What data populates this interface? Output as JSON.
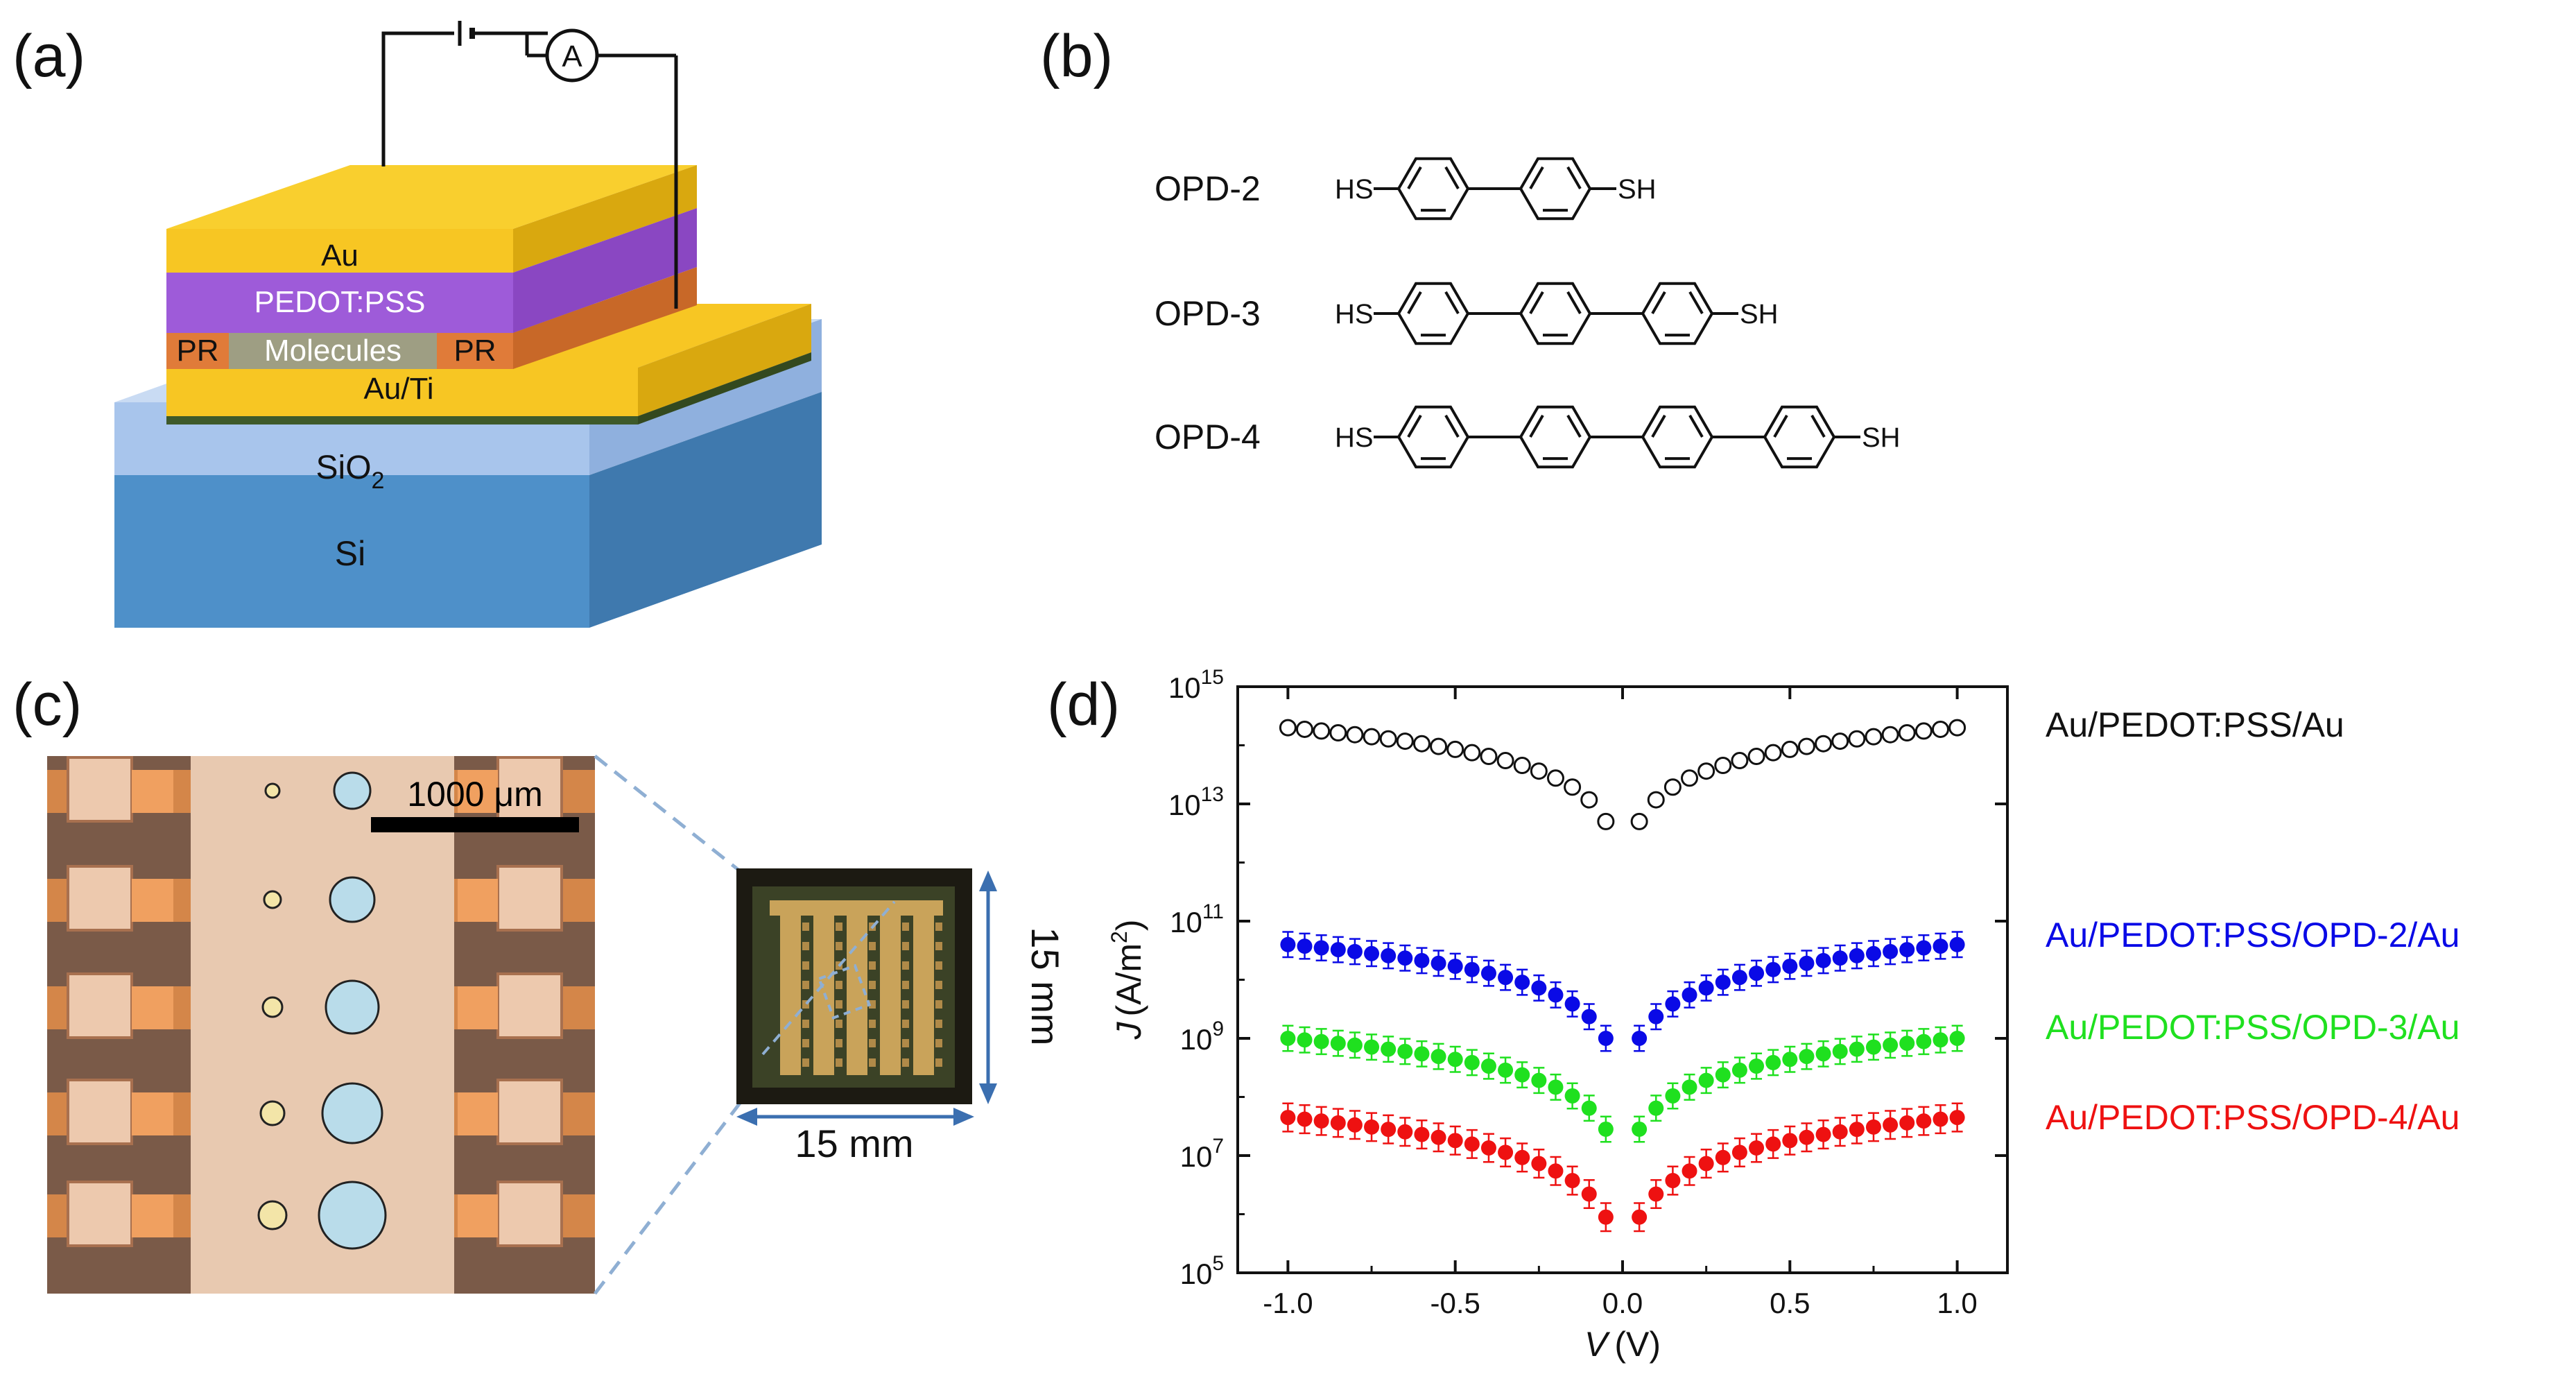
{
  "figure": {
    "panels": {
      "a": {
        "label": "(a)",
        "ammeter": "A",
        "layers": {
          "au_top": "Au",
          "pedot": "PEDOT:PSS",
          "pr_left": "PR",
          "molecules": "Molecules",
          "pr_right": "PR",
          "au_ti": "Au/Ti",
          "sio2_main": "SiO",
          "sio2_sub": "2",
          "si": "Si"
        },
        "colors": {
          "gold": "#F7C623",
          "purple": "#9E5BD9",
          "orange": "#E07B39",
          "molecule_gray": "#9E9E83",
          "sio2": "#A8C5EC",
          "si": "#4E90C9"
        }
      },
      "b": {
        "label": "(b)",
        "molecules": [
          {
            "name": "OPD-2",
            "rings": 2,
            "left_group": "HS",
            "right_group": "SH"
          },
          {
            "name": "OPD-3",
            "rings": 3,
            "left_group": "HS",
            "right_group": "SH"
          },
          {
            "name": "OPD-4",
            "rings": 4,
            "left_group": "HS",
            "right_group": "SH"
          }
        ]
      },
      "c": {
        "label": "(c)",
        "scale_bar": "1000 μm",
        "chip_width": "15 mm",
        "chip_height": "15 mm"
      },
      "d": {
        "label": "(d)"
      }
    }
  },
  "chart_data": {
    "type": "scatter",
    "title": "",
    "xlabel_var": "V",
    "xlabel_unit": "(V)",
    "ylabel_var": "J",
    "ylabel_unit": "(A/m",
    "ylabel_sup": "2",
    "ylabel_close": ")",
    "yscale": "log",
    "xlim": [
      -1.15,
      1.15
    ],
    "ylim_exp": [
      5,
      15
    ],
    "xticks": [
      "-1.0",
      "-0.5",
      "0.0",
      "0.5",
      "1.0"
    ],
    "xtick_values": [
      -1.0,
      -0.5,
      0.0,
      0.5,
      1.0
    ],
    "ytick_base": "10",
    "ytick_exps": [
      "5",
      "7",
      "9",
      "11",
      "13",
      "15"
    ],
    "voltage_step": 0.05,
    "series": [
      {
        "name": "Au/PEDOT:PSS/Au",
        "color": "#111111",
        "marker": "open-circle",
        "log10_J_at_1V": 14.3,
        "log10_J_at_0p05V": 12.7,
        "log10_err": 0.1,
        "sweep_from": -1.0,
        "sweep_to": 1.0
      },
      {
        "name": "Au/PEDOT:PSS/OPD-2/Au",
        "color": "#0A0AE6",
        "marker": "filled-circle",
        "log10_J_at_1V": 10.6,
        "log10_J_at_0p05V": 9.0,
        "log10_err": 0.18,
        "sweep_from": -1.0,
        "sweep_to": 1.0
      },
      {
        "name": "Au/PEDOT:PSS/OPD-3/Au",
        "color": "#1FE01F",
        "marker": "filled-circle",
        "log10_J_at_1V": 9.0,
        "log10_J_at_0p05V": 7.45,
        "log10_err": 0.18,
        "sweep_from": -1.0,
        "sweep_to": 1.0
      },
      {
        "name": "Au/PEDOT:PSS/OPD-4/Au",
        "color": "#EE1111",
        "marker": "filled-circle",
        "log10_J_at_1V": 7.65,
        "log10_J_at_0p05V": 5.95,
        "log10_err": 0.2,
        "sweep_from": -1.0,
        "sweep_to": 1.0
      }
    ]
  }
}
